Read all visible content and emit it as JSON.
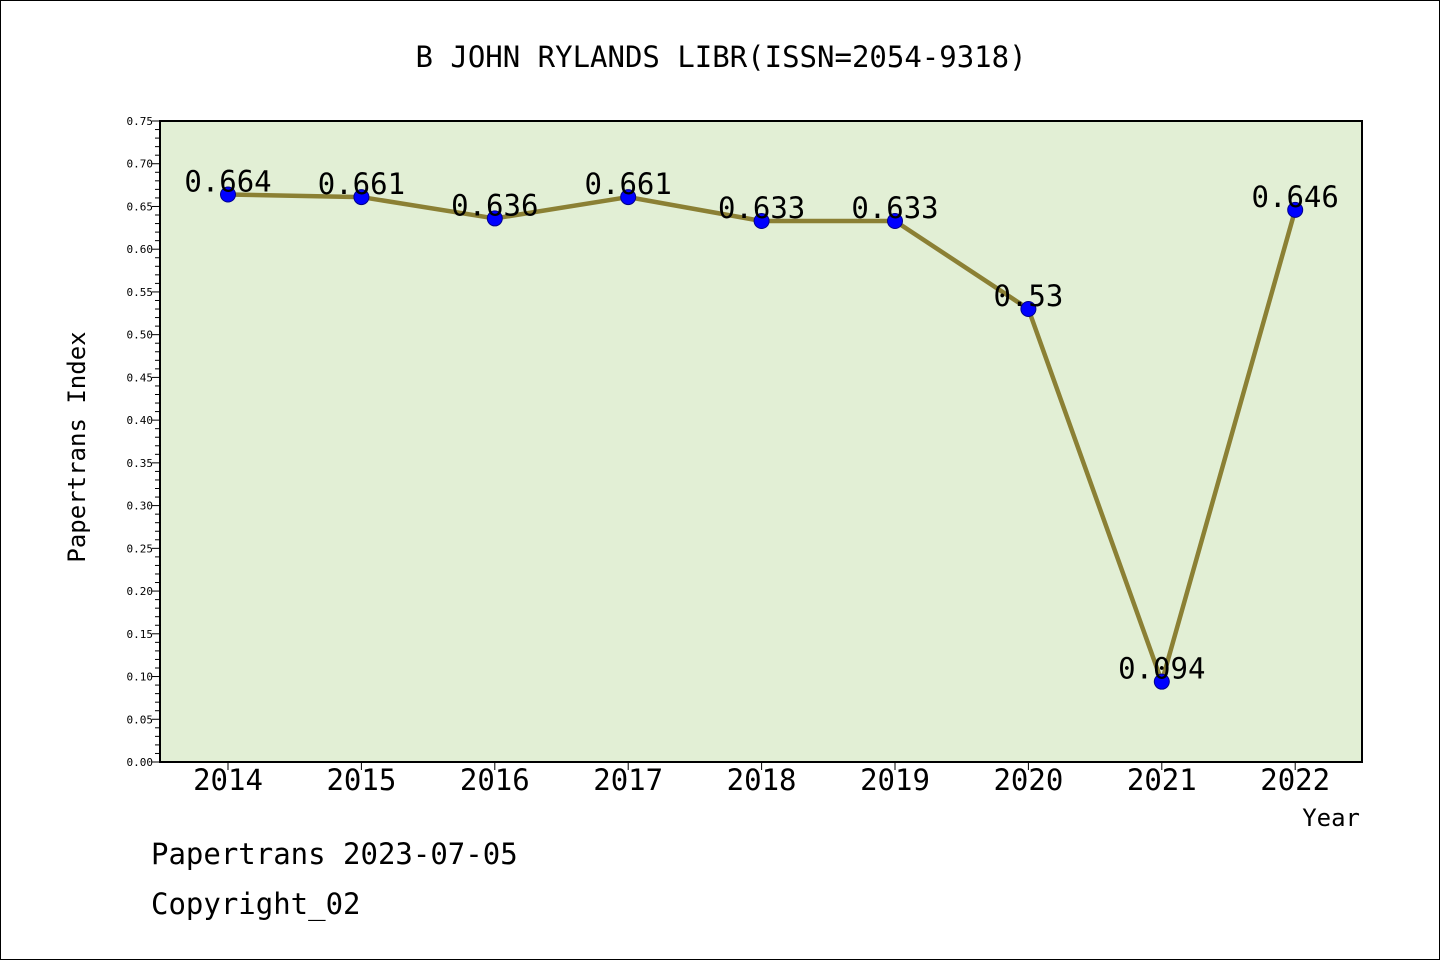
{
  "chart_data": {
    "type": "line",
    "title": "B JOHN RYLANDS LIBR(ISSN=2054-9318)",
    "xlabel": "Year",
    "ylabel": "Papertrans Index",
    "categories": [
      "2014",
      "2015",
      "2016",
      "2017",
      "2018",
      "2019",
      "2020",
      "2021",
      "2022"
    ],
    "values": [
      0.664,
      0.661,
      0.636,
      0.661,
      0.633,
      0.633,
      0.53,
      0.094,
      0.646
    ],
    "data_labels": [
      "0.664",
      "0.661",
      "0.636",
      "0.661",
      "0.633",
      "0.633",
      "0.53",
      "0.094",
      "0.646"
    ],
    "ylim": [
      0,
      0.75
    ],
    "yticks": [
      "0.00",
      "0.05",
      "0.10",
      "0.15",
      "0.20",
      "0.25",
      "0.30",
      "0.35",
      "0.40",
      "0.45",
      "0.50",
      "0.55",
      "0.60",
      "0.65",
      "0.70",
      "0.75"
    ],
    "grid": false,
    "legend": "none",
    "colors": {
      "plot_background": "#e2efd5",
      "line": "#8b8034",
      "marker": "#0000ff"
    }
  },
  "footer": {
    "source": "Papertrans 2023-07-05",
    "copyright": "Copyright_02"
  }
}
